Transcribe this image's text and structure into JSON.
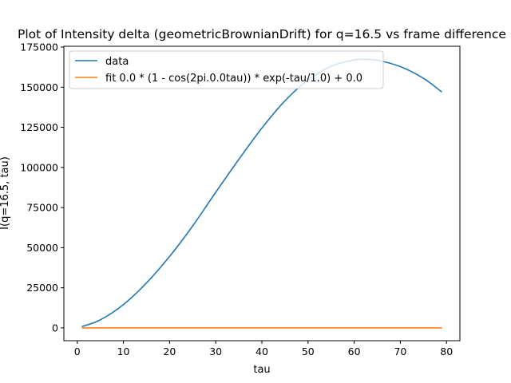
{
  "chart_data": {
    "type": "line",
    "title": "Plot of Intensity delta (geometricBrownianDrift) for q=16.5 vs frame difference",
    "xlabel": "tau",
    "ylabel": "I(q=16.5, tau)",
    "xlim": [
      -2.9,
      82.9
    ],
    "ylim": [
      -8000,
      175500
    ],
    "xticks": [
      0,
      10,
      20,
      30,
      40,
      50,
      60,
      70,
      80
    ],
    "yticks": [
      0,
      25000,
      50000,
      75000,
      100000,
      125000,
      150000,
      175000
    ],
    "grid": false,
    "legend": "upper-left",
    "series": [
      {
        "name": "data",
        "color": "#1f77b4",
        "x": [
          1,
          5,
          10,
          15,
          20,
          25,
          30,
          35,
          40,
          45,
          50,
          55,
          60,
          62,
          65,
          70,
          75,
          79
        ],
        "y": [
          800,
          5000,
          14500,
          28000,
          44500,
          63500,
          84500,
          105000,
          124500,
          141500,
          154500,
          163000,
          167000,
          167300,
          166800,
          162800,
          155500,
          147000
        ]
      },
      {
        "name": "fit 0.0 * (1 - cos(2pi.0.0tau)) * exp(-tau/1.0) + 0.0",
        "color": "#ff7f0e",
        "x": [
          1,
          79
        ],
        "y": [
          0,
          0
        ]
      }
    ]
  }
}
